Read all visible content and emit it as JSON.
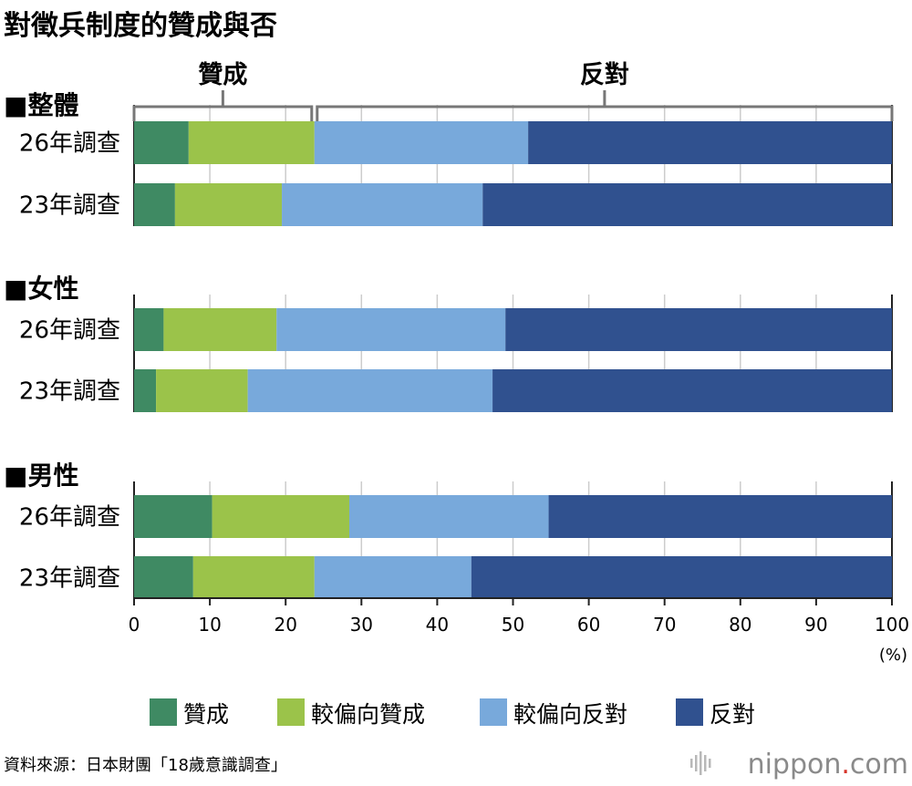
{
  "chart_data": {
    "type": "bar",
    "orientation": "horizontal",
    "stacked": true,
    "title": "對徵兵制度的贊成與否",
    "unit": "(%)",
    "xlim": [
      0,
      100
    ],
    "xticks": [
      0,
      10,
      20,
      30,
      40,
      50,
      60,
      70,
      80,
      90,
      100
    ],
    "grid": true,
    "legend_position": "bottom",
    "brackets": [
      {
        "label": "贊成",
        "from": 0,
        "to": 23.8
      },
      {
        "label": "反對",
        "from": 23.8,
        "to": 100
      }
    ],
    "series": [
      {
        "name": "贊成",
        "color": "#3f8a63"
      },
      {
        "name": "較偏向贊成",
        "color": "#9bc34a"
      },
      {
        "name": "較偏向反對",
        "color": "#78a9db"
      },
      {
        "name": "反對",
        "color": "#30518f"
      }
    ],
    "groups": [
      {
        "label": "■整體",
        "rows": [
          {
            "label": "26年調查",
            "values": [
              7.2,
              16.6,
              28.2,
              48.0
            ]
          },
          {
            "label": "23年調查",
            "values": [
              5.4,
              14.1,
              26.5,
              54.0
            ]
          }
        ]
      },
      {
        "label": "■女性",
        "rows": [
          {
            "label": "26年調查",
            "values": [
              3.9,
              14.9,
              30.2,
              51.0
            ]
          },
          {
            "label": "23年調查",
            "values": [
              2.9,
              12.1,
              32.3,
              52.7
            ]
          }
        ]
      },
      {
        "label": "■男性",
        "rows": [
          {
            "label": "26年調查",
            "values": [
              10.3,
              18.1,
              26.3,
              45.3
            ]
          },
          {
            "label": "23年調查",
            "values": [
              7.8,
              16.0,
              20.7,
              55.5
            ]
          }
        ]
      }
    ]
  },
  "source": "資料來源：日本財團「18歲意識調查」",
  "logo": {
    "text_main": "nippon",
    "text_dot": ".",
    "text_tld": "com",
    "dot_color": "#d6342a"
  }
}
